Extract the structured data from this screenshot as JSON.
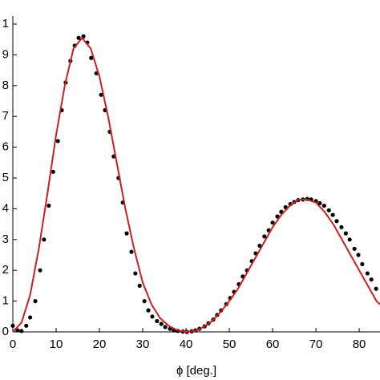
{
  "chart_data": {
    "type": "line",
    "xlabel": "ϕ [deg.]",
    "xlim": [
      0,
      84.8
    ],
    "ylim": [
      0,
      1
    ],
    "xticks": [
      0,
      10,
      20,
      30,
      40,
      50,
      60,
      70,
      80
    ],
    "yticks": [
      {
        "value": 0,
        "label": "0"
      },
      {
        "value": 0.1,
        "label": "1"
      },
      {
        "value": 0.2,
        "label": "2"
      },
      {
        "value": 0.3,
        "label": "3"
      },
      {
        "value": 0.4,
        "label": "4"
      },
      {
        "value": 0.5,
        "label": "5"
      },
      {
        "value": 0.6,
        "label": "6"
      },
      {
        "value": 0.7,
        "label": "7"
      },
      {
        "value": 0.8,
        "label": "8"
      },
      {
        "value": 0.9,
        "label": "9"
      },
      1
    ],
    "series": [
      {
        "style": "markers",
        "color": "#000000",
        "x": [
          0,
          1.1,
          2.0,
          3.1,
          4,
          5.2,
          6.3,
          7.2,
          8.3,
          9.3,
          10.4,
          11.3,
          12.2,
          13.3,
          14.3,
          15.2,
          16.3,
          17.2,
          18.1,
          19.3,
          20.4,
          21.3,
          22.4,
          23.3,
          24.4,
          25.4,
          26.3,
          27.4,
          28.3,
          29.3,
          30.4,
          31.3,
          32.2,
          33.3,
          34.3,
          35.2,
          36.3,
          37.2,
          38.1,
          39.3,
          40.2,
          41.3,
          42.2,
          43.1,
          44.3,
          45.2,
          46.3,
          47.2,
          48.1,
          49.3,
          50.2,
          51.1,
          52.2,
          53.1,
          54.1,
          55.2,
          56.1,
          57,
          58.1,
          59.1,
          60,
          61.1,
          62,
          63,
          64.1,
          65,
          65.9,
          67,
          68,
          68.9,
          70,
          70.9,
          71.9,
          73,
          73.9,
          74.8,
          75.9,
          76.9,
          77.8,
          78.9,
          79.8,
          80.7,
          81.9,
          82.8,
          83.9
        ],
        "values": [
          0.02,
          0.005,
          0.003,
          0.02,
          0.047,
          0.1,
          0.2,
          0.3,
          0.41,
          0.52,
          0.62,
          0.72,
          0.81,
          0.88,
          0.93,
          0.955,
          0.96,
          0.94,
          0.89,
          0.84,
          0.77,
          0.72,
          0.65,
          0.57,
          0.5,
          0.42,
          0.32,
          0.26,
          0.19,
          0.15,
          0.1,
          0.07,
          0.05,
          0.035,
          0.026,
          0.016,
          0.01,
          0.005,
          0.003,
          0.001,
          0,
          0.002,
          0.005,
          0.01,
          0.018,
          0.028,
          0.04,
          0.055,
          0.07,
          0.09,
          0.11,
          0.13,
          0.155,
          0.18,
          0.2,
          0.23,
          0.255,
          0.28,
          0.31,
          0.33,
          0.355,
          0.375,
          0.39,
          0.405,
          0.415,
          0.422,
          0.428,
          0.43,
          0.432,
          0.43,
          0.425,
          0.418,
          0.41,
          0.395,
          0.38,
          0.36,
          0.34,
          0.32,
          0.3,
          0.27,
          0.25,
          0.22,
          0.19,
          0.17,
          0.14
        ]
      },
      {
        "style": "line",
        "color": "#cc1f1f",
        "x": [
          0,
          2,
          4,
          6,
          8,
          10,
          12,
          14,
          16,
          18,
          20,
          22,
          24,
          26,
          28,
          30,
          32,
          34,
          36,
          38,
          40,
          42,
          44,
          46,
          48,
          50,
          52,
          54,
          56,
          58,
          60,
          62,
          64,
          66,
          68,
          70,
          72,
          74,
          76,
          78,
          80,
          82,
          84,
          84.8
        ],
        "values": [
          0,
          0.03,
          0.12,
          0.27,
          0.45,
          0.64,
          0.8,
          0.92,
          0.955,
          0.92,
          0.83,
          0.7,
          0.55,
          0.4,
          0.27,
          0.16,
          0.09,
          0.045,
          0.02,
          0.005,
          0,
          0.003,
          0.015,
          0.035,
          0.065,
          0.1,
          0.14,
          0.19,
          0.24,
          0.29,
          0.34,
          0.38,
          0.41,
          0.43,
          0.43,
          0.42,
          0.39,
          0.35,
          0.3,
          0.25,
          0.2,
          0.15,
          0.1,
          0.089
        ]
      }
    ]
  }
}
